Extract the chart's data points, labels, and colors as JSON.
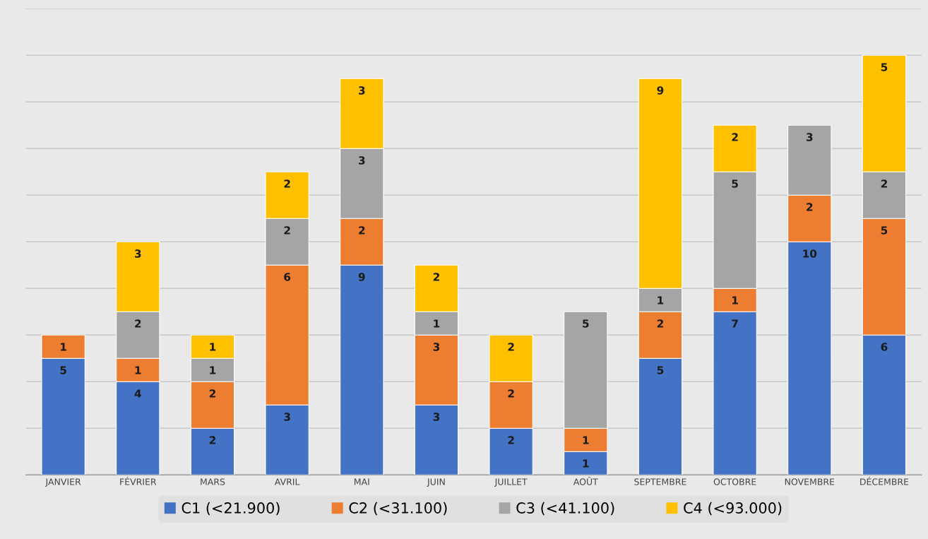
{
  "chart_data": {
    "type": "bar",
    "stacked": true,
    "data_labels": true,
    "categories": [
      "JANVIER",
      "FÉVRIER",
      "MARS",
      "AVRIL",
      "MAI",
      "JUIN",
      "JUILLET",
      "AOÛT",
      "SEPTEMBRE",
      "OCTOBRE",
      "NOVEMBRE",
      "DÉCEMBRE"
    ],
    "series": [
      {
        "name": "C1 (<21.900)",
        "color": "#4472c4",
        "values": [
          5,
          4,
          2,
          3,
          9,
          3,
          2,
          1,
          5,
          7,
          10,
          6
        ]
      },
      {
        "name": "C2 (<31.100)",
        "color": "#ed7d31",
        "values": [
          1,
          1,
          2,
          6,
          2,
          3,
          2,
          1,
          2,
          1,
          2,
          5
        ]
      },
      {
        "name": "C3 (<41.100)",
        "color": "#a5a5a5",
        "values": [
          null,
          2,
          1,
          2,
          3,
          1,
          null,
          5,
          1,
          5,
          3,
          2
        ]
      },
      {
        "name": "C4 (<93.000)",
        "color": "#ffc000",
        "values": [
          null,
          3,
          1,
          2,
          3,
          2,
          2,
          null,
          9,
          2,
          null,
          5
        ]
      }
    ],
    "ylim": [
      0,
      20
    ],
    "yticks": [
      {
        "value": 0,
        "label": null
      },
      {
        "value": 2,
        "label": null
      },
      {
        "value": 4,
        "label": null
      },
      {
        "value": 6,
        "label": null
      },
      {
        "value": 8,
        "label": null
      },
      {
        "value": 10,
        "label": null
      },
      {
        "value": 12,
        "label": null
      },
      {
        "value": 14,
        "label": null
      },
      {
        "value": 16,
        "label": null
      },
      {
        "value": 18,
        "label": null
      },
      {
        "value": 20,
        "label": null
      }
    ],
    "tick_labels": "x",
    "grid": "y",
    "legend": "bottom"
  }
}
